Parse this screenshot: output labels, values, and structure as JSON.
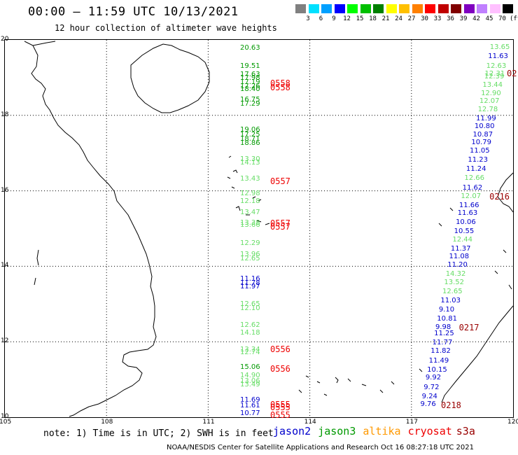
{
  "header": {
    "title": "00:00 – 11:59 UTC 10/13/2021",
    "subtitle": "12 hour collection of altimeter wave heights"
  },
  "color_scale": {
    "labels": [
      "3",
      "6",
      "9",
      "12",
      "15",
      "18",
      "21",
      "24",
      "27",
      "30",
      "33",
      "36",
      "39",
      "42",
      "45",
      "70"
    ],
    "unit": "(ft)",
    "colors": [
      "#808080",
      "#00e0ff",
      "#00a0ff",
      "#0000ff",
      "#00ff00",
      "#00c000",
      "#008000",
      "#ffff00",
      "#ffc000",
      "#ff8000",
      "#ff0000",
      "#c00000",
      "#800000",
      "#8000c0",
      "#c080ff",
      "#ffc0ff",
      "#000000"
    ]
  },
  "map": {
    "lat_labels": [
      "20",
      "18",
      "16",
      "14",
      "12",
      "10"
    ],
    "lon_labels": [
      "105",
      "108",
      "111",
      "114",
      "117",
      "120"
    ],
    "extent": {
      "lon": [
        105,
        120
      ],
      "lat": [
        10,
        20
      ]
    }
  },
  "satellite_colors": {
    "jason2": "#0000cc",
    "jason3": "#009900",
    "jason3_light": "#66dd66",
    "altika": "#ff9900",
    "cryosat": "#ee0000",
    "s3a": "#990000"
  },
  "tracks": {
    "left": [
      {
        "v": "20.63",
        "c": "jason3",
        "lat": 19.77
      },
      {
        "v": "19.51",
        "c": "jason3",
        "lat": 19.3
      },
      {
        "v": "17.63",
        "c": "jason3",
        "lat": 19.07
      },
      {
        "v": "17.98",
        "c": "jason3",
        "lat": 18.98
      },
      {
        "v": "17.19",
        "c": "jason3",
        "lat": 18.86
      },
      {
        "v": "17.26",
        "c": "jason3",
        "lat": 18.75
      },
      {
        "v": "18.40",
        "c": "jason3",
        "lat": 18.68
      },
      {
        "v": "16.75",
        "c": "jason3",
        "lat": 18.41
      },
      {
        "v": "17.29",
        "c": "jason3",
        "lat": 18.3
      },
      {
        "v": "19.06",
        "c": "jason3",
        "lat": 17.61
      },
      {
        "v": "17.25",
        "c": "jason3",
        "lat": 17.47
      },
      {
        "v": "18.71",
        "c": "jason3",
        "lat": 17.36
      },
      {
        "v": "18.86",
        "c": "jason3",
        "lat": 17.25
      },
      {
        "v": "13.30",
        "c": "jason3_light",
        "lat": 16.83
      },
      {
        "v": "14.13",
        "c": "jason3_light",
        "lat": 16.74
      },
      {
        "v": "13.43",
        "c": "jason3_light",
        "lat": 16.3
      },
      {
        "v": "12.98",
        "c": "jason3_light",
        "lat": 15.92
      },
      {
        "v": "12.18",
        "c": "jason3_light",
        "lat": 15.72
      },
      {
        "v": "13.47",
        "c": "jason3_light",
        "lat": 15.42
      },
      {
        "v": "13.38",
        "c": "jason3_light",
        "lat": 15.14
      },
      {
        "v": "13.66",
        "c": "jason3_light",
        "lat": 15.08
      },
      {
        "v": "12.29",
        "c": "jason3_light",
        "lat": 14.6
      },
      {
        "v": "13.96",
        "c": "jason3_light",
        "lat": 14.3
      },
      {
        "v": "12.65",
        "c": "jason3_light",
        "lat": 14.19
      },
      {
        "v": "11.16",
        "c": "jason2",
        "lat": 13.66
      },
      {
        "v": "11.78",
        "c": "jason2",
        "lat": 13.55
      },
      {
        "v": "11.97",
        "c": "jason2",
        "lat": 13.45
      },
      {
        "v": "12.65",
        "c": "jason3_light",
        "lat": 12.98
      },
      {
        "v": "12.10",
        "c": "jason3_light",
        "lat": 12.87
      },
      {
        "v": "12.62",
        "c": "jason3_light",
        "lat": 12.43
      },
      {
        "v": "14.18",
        "c": "jason3_light",
        "lat": 12.22
      },
      {
        "v": "13.34",
        "c": "jason3_light",
        "lat": 11.79
      },
      {
        "v": "12.74",
        "c": "jason3_light",
        "lat": 11.7
      },
      {
        "v": "15.06",
        "c": "jason3",
        "lat": 11.31
      },
      {
        "v": "14.90",
        "c": "jason3_light",
        "lat": 11.1
      },
      {
        "v": "13.06",
        "c": "jason3_light",
        "lat": 10.94
      },
      {
        "v": "13.49",
        "c": "jason3_light",
        "lat": 10.85
      },
      {
        "v": "11.69",
        "c": "jason2",
        "lat": 10.45
      },
      {
        "v": "11.61",
        "c": "jason2",
        "lat": 10.3
      },
      {
        "v": "10.77",
        "c": "jason2",
        "lat": 10.09
      }
    ],
    "left_passes": [
      {
        "v": "0558",
        "lat": 18.87
      },
      {
        "v": "0558",
        "lat": 18.76
      },
      {
        "v": "0557",
        "lat": 16.28
      },
      {
        "v": "0557",
        "lat": 15.15
      },
      {
        "v": "0557",
        "lat": 15.07
      },
      {
        "v": "0556",
        "lat": 11.82
      },
      {
        "v": "0556",
        "lat": 11.3
      },
      {
        "v": "0555",
        "lat": 10.36
      },
      {
        "v": "0555",
        "lat": 10.27
      },
      {
        "v": "0555",
        "lat": 10.07
      }
    ],
    "right": [
      {
        "v": "13.65",
        "c": "jason3_light",
        "lat": 19.79
      },
      {
        "v": "11.63",
        "c": "jason2",
        "lat": 19.55
      },
      {
        "v": "12.63",
        "c": "jason3_light",
        "lat": 19.3
      },
      {
        "v": "12.31",
        "c": "jason3_light",
        "lat": 19.1
      },
      {
        "v": "12.39",
        "c": "jason3_light",
        "lat": 19.02
      },
      {
        "v": "13.44",
        "c": "jason3_light",
        "lat": 18.8
      },
      {
        "v": "12.90",
        "c": "jason3_light",
        "lat": 18.58
      },
      {
        "v": "12.07",
        "c": "jason3_light",
        "lat": 18.37
      },
      {
        "v": "12.78",
        "c": "jason3_light",
        "lat": 18.15
      },
      {
        "v": "11.99",
        "c": "jason2",
        "lat": 17.91
      },
      {
        "v": "10.80",
        "c": "jason2",
        "lat": 17.7
      },
      {
        "v": "10.87",
        "c": "jason2",
        "lat": 17.48
      },
      {
        "v": "10.79",
        "c": "jason2",
        "lat": 17.27
      },
      {
        "v": "11.05",
        "c": "jason2",
        "lat": 17.05
      },
      {
        "v": "11.23",
        "c": "jason2",
        "lat": 16.8
      },
      {
        "v": "11.24",
        "c": "jason2",
        "lat": 16.56
      },
      {
        "v": "12.66",
        "c": "jason3_light",
        "lat": 16.32
      },
      {
        "v": "11.62",
        "c": "jason2",
        "lat": 16.06
      },
      {
        "v": "12.07",
        "c": "jason3_light",
        "lat": 15.85
      },
      {
        "v": "11.66",
        "c": "jason2",
        "lat": 15.61
      },
      {
        "v": "11.63",
        "c": "jason2",
        "lat": 15.39
      },
      {
        "v": "10.06",
        "c": "jason2",
        "lat": 15.15
      },
      {
        "v": "10.55",
        "c": "jason2",
        "lat": 14.92
      },
      {
        "v": "12.44",
        "c": "jason3_light",
        "lat": 14.7
      },
      {
        "v": "11.37",
        "c": "jason2",
        "lat": 14.46
      },
      {
        "v": "11.08",
        "c": "jason2",
        "lat": 14.24
      },
      {
        "v": "11.20",
        "c": "jason2",
        "lat": 14.02
      },
      {
        "v": "14.32",
        "c": "jason3_light",
        "lat": 13.78
      },
      {
        "v": "13.52",
        "c": "jason3_light",
        "lat": 13.56
      },
      {
        "v": "12.65",
        "c": "jason3_light",
        "lat": 13.33
      },
      {
        "v": "11.03",
        "c": "jason2",
        "lat": 13.08
      },
      {
        "v": "9.10",
        "c": "jason2",
        "lat": 12.84
      },
      {
        "v": "10.81",
        "c": "jason2",
        "lat": 12.6
      },
      {
        "v": "9.98",
        "c": "jason2",
        "lat": 12.38
      },
      {
        "v": "11.25",
        "c": "jason2",
        "lat": 12.2
      },
      {
        "v": "11.77",
        "c": "jason2",
        "lat": 11.97
      },
      {
        "v": "11.82",
        "c": "jason2",
        "lat": 11.74
      },
      {
        "v": "11.49",
        "c": "jason2",
        "lat": 11.49
      },
      {
        "v": "10.15",
        "c": "jason2",
        "lat": 11.25
      },
      {
        "v": "9.92",
        "c": "jason2",
        "lat": 11.03
      },
      {
        "v": "9.72",
        "c": "jason2",
        "lat": 10.78
      },
      {
        "v": "9.24",
        "c": "jason2",
        "lat": 10.54
      },
      {
        "v": "9.76",
        "c": "jason2",
        "lat": 10.33
      }
    ],
    "right_passes": [
      {
        "v": "02",
        "lat": 19.11
      },
      {
        "v": "0216",
        "lat": 15.85
      },
      {
        "v": "0217",
        "lat": 12.37
      },
      {
        "v": "0218",
        "lat": 10.32
      }
    ]
  },
  "footer": {
    "note": "note: 1) Time is in UTC; 2) SWH is in feet",
    "legend": [
      "jason2",
      "jason3",
      "altika",
      "cryosat",
      "s3a"
    ],
    "credit": "NOAA/NESDIS Center for Satellite Applications and Research    Oct 16 08:27:18 UTC 2021"
  }
}
